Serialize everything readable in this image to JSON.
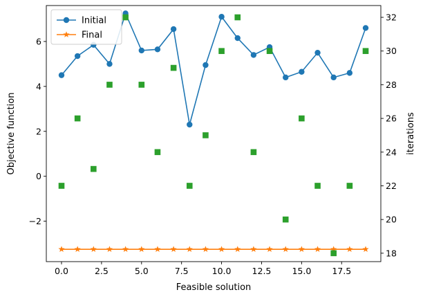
{
  "chart_data": {
    "type": "line",
    "xlabel": "Feasible solution",
    "ylabel": "Objective function",
    "y2label": "iterations",
    "xlim": [
      -0.95,
      19.95
    ],
    "ylim": [
      -3.8,
      7.6
    ],
    "y2lim": [
      17.5,
      32.7
    ],
    "xticks": [
      0.0,
      2.5,
      5.0,
      7.5,
      10.0,
      12.5,
      15.0,
      17.5
    ],
    "xtick_labels": [
      "0.0",
      "2.5",
      "5.0",
      "7.5",
      "10.0",
      "12.5",
      "15.0",
      "17.5"
    ],
    "yticks": [
      -2,
      0,
      2,
      4,
      6
    ],
    "ytick_labels": [
      "−2",
      "0",
      "2",
      "4",
      "6"
    ],
    "y2ticks": [
      18,
      20,
      22,
      24,
      26,
      28,
      30,
      32
    ],
    "y2tick_labels": [
      "18",
      "20",
      "22",
      "24",
      "26",
      "28",
      "30",
      "32"
    ],
    "grid": false,
    "legend_position": "top-left",
    "x": [
      0,
      1,
      2,
      3,
      4,
      5,
      6,
      7,
      8,
      9,
      10,
      11,
      12,
      13,
      14,
      15,
      16,
      17,
      18,
      19
    ],
    "series": [
      {
        "name": "Initial",
        "axis": "left",
        "marker": "circle",
        "color": "#1f77b4",
        "values": [
          4.5,
          5.35,
          5.85,
          5.0,
          7.25,
          5.6,
          5.65,
          6.55,
          2.3,
          4.95,
          7.1,
          6.15,
          5.4,
          5.75,
          4.4,
          4.65,
          5.5,
          4.4,
          4.6,
          6.6
        ]
      },
      {
        "name": "Final",
        "axis": "left",
        "marker": "star",
        "color": "#ff7f0e",
        "values": [
          -3.25,
          -3.25,
          -3.25,
          -3.25,
          -3.25,
          -3.25,
          -3.25,
          -3.25,
          -3.25,
          -3.25,
          -3.25,
          -3.25,
          -3.25,
          -3.25,
          -3.25,
          -3.25,
          -3.25,
          -3.25,
          -3.25,
          -3.25
        ]
      },
      {
        "axis": "right",
        "marker": "square",
        "style": "markers-only",
        "color": "#2ca02c",
        "values": [
          22,
          26,
          23,
          28,
          32,
          28,
          24,
          29,
          22,
          25,
          30,
          32,
          24,
          30,
          20,
          26,
          22,
          18,
          22,
          30
        ]
      }
    ]
  }
}
